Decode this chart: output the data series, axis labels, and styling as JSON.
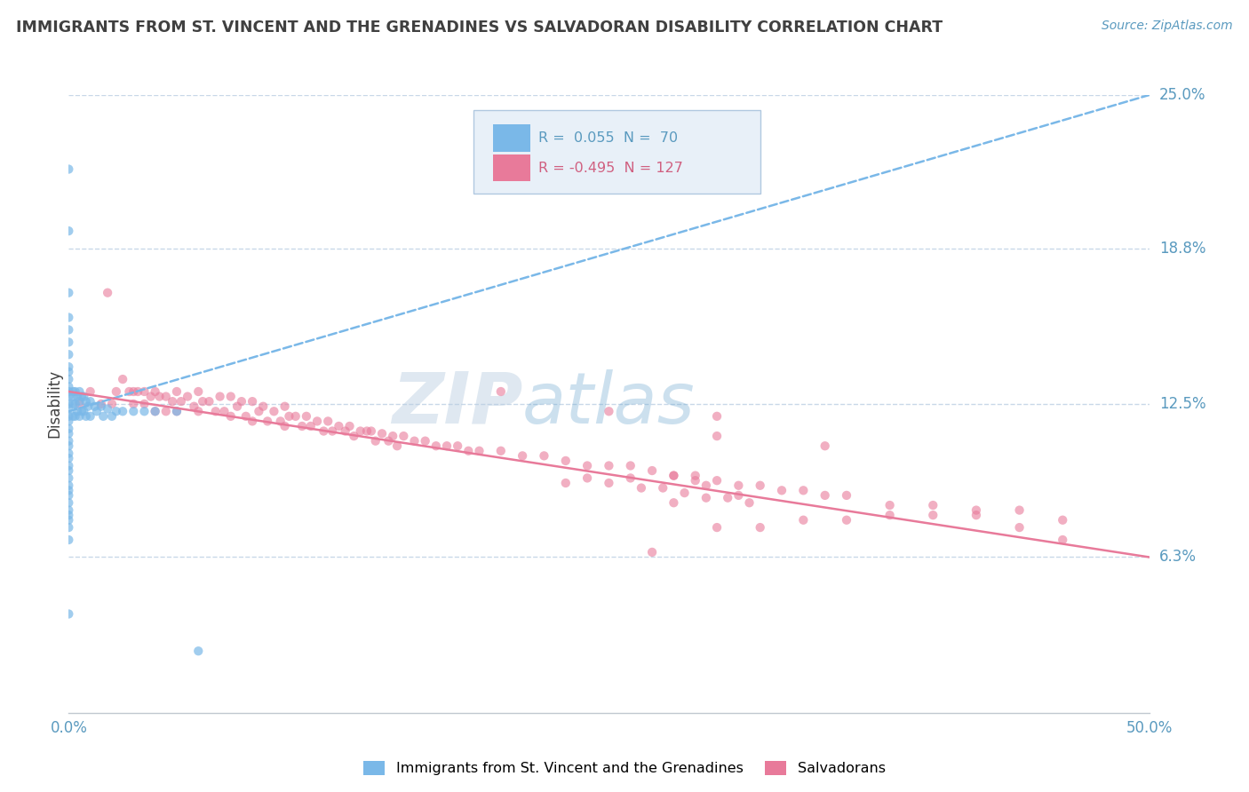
{
  "title": "IMMIGRANTS FROM ST. VINCENT AND THE GRENADINES VS SALVADORAN DISABILITY CORRELATION CHART",
  "source_text": "Source: ZipAtlas.com",
  "ylabel": "Disability",
  "xlabel": "",
  "xlim": [
    0.0,
    0.5
  ],
  "ylim": [
    0.0,
    0.25
  ],
  "yticks": [
    0.063,
    0.125,
    0.188,
    0.25
  ],
  "ytick_labels": [
    "6.3%",
    "12.5%",
    "18.8%",
    "25.0%"
  ],
  "xtick_labels": [
    "0.0%",
    "50.0%"
  ],
  "watermark": "ZIPatlas",
  "blue_line_x0": 0.0,
  "blue_line_y0": 0.122,
  "blue_line_x1": 0.5,
  "blue_line_y1": 0.25,
  "pink_line_x0": 0.0,
  "pink_line_y0": 0.13,
  "pink_line_x1": 0.5,
  "pink_line_y1": 0.063,
  "blue_scatter_x": [
    0.0,
    0.0,
    0.0,
    0.0,
    0.0,
    0.0,
    0.0,
    0.0,
    0.0,
    0.0,
    0.0,
    0.0,
    0.0,
    0.0,
    0.0,
    0.0,
    0.0,
    0.0,
    0.0,
    0.0,
    0.0,
    0.0,
    0.0,
    0.0,
    0.0,
    0.0,
    0.0,
    0.0,
    0.0,
    0.0,
    0.0,
    0.0,
    0.0,
    0.0,
    0.0,
    0.0,
    0.002,
    0.002,
    0.002,
    0.002,
    0.003,
    0.003,
    0.003,
    0.004,
    0.004,
    0.005,
    0.005,
    0.005,
    0.006,
    0.006,
    0.007,
    0.007,
    0.008,
    0.008,
    0.009,
    0.01,
    0.01,
    0.012,
    0.013,
    0.015,
    0.016,
    0.018,
    0.02,
    0.022,
    0.025,
    0.03,
    0.035,
    0.04,
    0.05,
    0.06
  ],
  "blue_scatter_y": [
    0.22,
    0.195,
    0.17,
    0.16,
    0.155,
    0.15,
    0.145,
    0.14,
    0.138,
    0.135,
    0.132,
    0.13,
    0.128,
    0.125,
    0.123,
    0.12,
    0.118,
    0.115,
    0.113,
    0.11,
    0.108,
    0.105,
    0.103,
    0.1,
    0.098,
    0.095,
    0.092,
    0.09,
    0.088,
    0.085,
    0.082,
    0.08,
    0.078,
    0.075,
    0.07,
    0.04,
    0.13,
    0.128,
    0.125,
    0.12,
    0.13,
    0.125,
    0.12,
    0.128,
    0.122,
    0.13,
    0.126,
    0.12,
    0.128,
    0.122,
    0.128,
    0.122,
    0.126,
    0.12,
    0.124,
    0.126,
    0.12,
    0.124,
    0.122,
    0.124,
    0.12,
    0.123,
    0.12,
    0.122,
    0.122,
    0.122,
    0.122,
    0.122,
    0.122,
    0.025
  ],
  "pink_scatter_x": [
    0.005,
    0.01,
    0.015,
    0.018,
    0.02,
    0.022,
    0.025,
    0.028,
    0.03,
    0.03,
    0.032,
    0.035,
    0.035,
    0.038,
    0.04,
    0.04,
    0.042,
    0.045,
    0.045,
    0.048,
    0.05,
    0.05,
    0.052,
    0.055,
    0.058,
    0.06,
    0.06,
    0.062,
    0.065,
    0.068,
    0.07,
    0.072,
    0.075,
    0.075,
    0.078,
    0.08,
    0.082,
    0.085,
    0.085,
    0.088,
    0.09,
    0.092,
    0.095,
    0.098,
    0.1,
    0.1,
    0.102,
    0.105,
    0.108,
    0.11,
    0.112,
    0.115,
    0.118,
    0.12,
    0.122,
    0.125,
    0.128,
    0.13,
    0.132,
    0.135,
    0.138,
    0.14,
    0.142,
    0.145,
    0.148,
    0.15,
    0.152,
    0.155,
    0.16,
    0.165,
    0.17,
    0.175,
    0.18,
    0.185,
    0.19,
    0.2,
    0.21,
    0.22,
    0.23,
    0.24,
    0.25,
    0.26,
    0.27,
    0.28,
    0.29,
    0.3,
    0.31,
    0.32,
    0.33,
    0.34,
    0.35,
    0.36,
    0.38,
    0.4,
    0.42,
    0.44,
    0.46,
    0.2,
    0.25,
    0.3,
    0.35,
    0.28,
    0.3,
    0.32,
    0.34,
    0.36,
    0.38,
    0.4,
    0.42,
    0.44,
    0.46,
    0.28,
    0.29,
    0.295,
    0.31,
    0.27,
    0.26,
    0.24,
    0.23,
    0.25,
    0.265,
    0.275,
    0.285,
    0.295,
    0.305,
    0.315,
    0.3
  ],
  "pink_scatter_y": [
    0.125,
    0.13,
    0.125,
    0.17,
    0.125,
    0.13,
    0.135,
    0.13,
    0.13,
    0.125,
    0.13,
    0.13,
    0.125,
    0.128,
    0.13,
    0.122,
    0.128,
    0.128,
    0.122,
    0.126,
    0.13,
    0.122,
    0.126,
    0.128,
    0.124,
    0.13,
    0.122,
    0.126,
    0.126,
    0.122,
    0.128,
    0.122,
    0.128,
    0.12,
    0.124,
    0.126,
    0.12,
    0.126,
    0.118,
    0.122,
    0.124,
    0.118,
    0.122,
    0.118,
    0.124,
    0.116,
    0.12,
    0.12,
    0.116,
    0.12,
    0.116,
    0.118,
    0.114,
    0.118,
    0.114,
    0.116,
    0.114,
    0.116,
    0.112,
    0.114,
    0.114,
    0.114,
    0.11,
    0.113,
    0.11,
    0.112,
    0.108,
    0.112,
    0.11,
    0.11,
    0.108,
    0.108,
    0.108,
    0.106,
    0.106,
    0.106,
    0.104,
    0.104,
    0.102,
    0.1,
    0.1,
    0.1,
    0.098,
    0.096,
    0.096,
    0.094,
    0.092,
    0.092,
    0.09,
    0.09,
    0.088,
    0.088,
    0.084,
    0.084,
    0.082,
    0.082,
    0.078,
    0.13,
    0.122,
    0.112,
    0.108,
    0.085,
    0.075,
    0.075,
    0.078,
    0.078,
    0.08,
    0.08,
    0.08,
    0.075,
    0.07,
    0.096,
    0.094,
    0.092,
    0.088,
    0.065,
    0.095,
    0.095,
    0.093,
    0.093,
    0.091,
    0.091,
    0.089,
    0.087,
    0.087,
    0.085,
    0.12
  ],
  "blue_line_color": "#7ab8e8",
  "pink_line_color": "#e87a9a",
  "grid_color": "#c8d8e8",
  "background_color": "#ffffff",
  "title_color": "#404040",
  "axis_color": "#5a9abf",
  "axis_label_color": "#404040",
  "watermark_color": "#c8d8e8",
  "watermark_alpha": 0.6,
  "legend_box_color": "#e8f0f8",
  "legend_edge_color": "#b0c8e0"
}
